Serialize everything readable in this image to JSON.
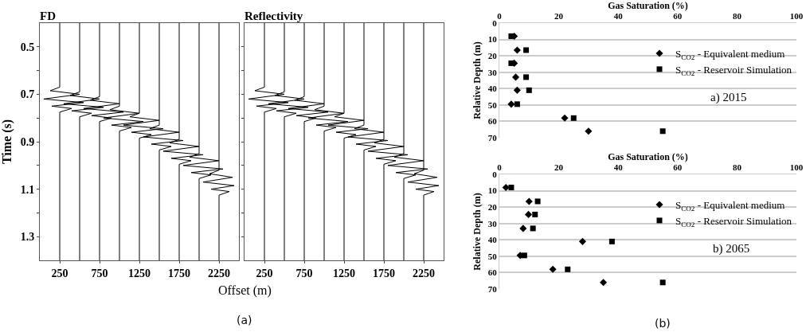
{
  "chart_data": [
    {
      "type": "line",
      "title": "FD",
      "ylabel": "Time (s)",
      "xlim": [
        0,
        2500
      ],
      "xticks": [
        250,
        750,
        1250,
        1750,
        2250
      ],
      "ylim": [
        1.4,
        0.4
      ],
      "yticks": [
        0.5,
        {
          "value": 0.6,
          "label": null
        },
        0.7,
        {
          "value": 0.8,
          "label": null
        },
        0.9,
        {
          "value": 1.0,
          "label": null
        },
        1.1,
        {
          "value": 1.2,
          "label": null
        },
        1.3
      ],
      "grid": false,
      "legend": false,
      "line_style": "solid",
      "series": [
        {
          "color": "#000000",
          "x": [
            250,
            250,
            130,
            500,
            50,
            550,
            150,
            400,
            250,
            250
          ],
          "values": [
            0.4,
            0.67,
            0.685,
            0.7,
            0.72,
            0.735,
            0.75,
            0.76,
            0.775,
            1.4
          ]
        },
        {
          "color": "#000000",
          "x": [
            500,
            500,
            380,
            750,
            300,
            800,
            400,
            650,
            500,
            500
          ],
          "values": [
            0.4,
            0.69,
            0.705,
            0.72,
            0.74,
            0.755,
            0.77,
            0.78,
            0.795,
            1.4
          ]
        },
        {
          "color": "#000000",
          "x": [
            750,
            750,
            630,
            1000,
            550,
            1050,
            650,
            900,
            750,
            750
          ],
          "values": [
            0.4,
            0.71,
            0.725,
            0.74,
            0.76,
            0.775,
            0.79,
            0.8,
            0.815,
            1.4
          ]
        },
        {
          "color": "#000000",
          "x": [
            1000,
            1000,
            880,
            1250,
            800,
            1300,
            900,
            1150,
            1000,
            1000
          ],
          "values": [
            0.4,
            0.75,
            0.765,
            0.78,
            0.8,
            0.815,
            0.83,
            0.84,
            0.855,
            1.4
          ]
        },
        {
          "color": "#000000",
          "x": [
            1250,
            1250,
            1130,
            1500,
            1050,
            1550,
            1150,
            1400,
            1250,
            1250
          ],
          "values": [
            0.4,
            0.78,
            0.795,
            0.81,
            0.83,
            0.845,
            0.86,
            0.87,
            0.885,
            1.4
          ]
        },
        {
          "color": "#000000",
          "x": [
            1500,
            1500,
            1380,
            1750,
            1300,
            1800,
            1400,
            1650,
            1500,
            1500
          ],
          "values": [
            0.4,
            0.83,
            0.845,
            0.86,
            0.88,
            0.895,
            0.91,
            0.92,
            0.935,
            1.4
          ]
        },
        {
          "color": "#000000",
          "x": [
            1750,
            1750,
            1630,
            2000,
            1550,
            2050,
            1650,
            1900,
            1750,
            1750
          ],
          "values": [
            0.4,
            0.89,
            0.905,
            0.92,
            0.94,
            0.955,
            0.97,
            0.98,
            0.995,
            1.4
          ]
        },
        {
          "color": "#000000",
          "x": [
            2000,
            2000,
            1880,
            2250,
            1800,
            2300,
            1900,
            2150,
            2000,
            2000
          ],
          "values": [
            0.4,
            0.95,
            0.965,
            0.98,
            1.0,
            1.015,
            1.03,
            1.04,
            1.055,
            1.4
          ]
        },
        {
          "color": "#000000",
          "x": [
            2250,
            2250,
            2130,
            2420,
            2050,
            2440,
            2150,
            2380,
            2250,
            2250
          ],
          "values": [
            0.4,
            1.02,
            1.035,
            1.05,
            1.07,
            1.085,
            1.1,
            1.11,
            1.125,
            1.4
          ]
        }
      ]
    },
    {
      "type": "line",
      "title": "Reflectivity",
      "xlabel": "Offset (m)",
      "annotations": [
        "(a)"
      ],
      "tick_labels": "x",
      "xlim": [
        0,
        2500
      ],
      "xticks": [
        250,
        750,
        1250,
        1750,
        2250
      ],
      "ylim": [
        1.4,
        0.4
      ],
      "yticks": [
        0.5,
        0.6,
        0.7,
        0.8,
        0.9,
        1.0,
        1.1,
        1.2,
        1.3
      ],
      "grid": false,
      "legend": false,
      "line_style": "solid",
      "series": [
        {
          "color": "#000000",
          "x": [
            250,
            250,
            130,
            500,
            50,
            550,
            150,
            400,
            250,
            250
          ],
          "values": [
            0.4,
            0.67,
            0.685,
            0.7,
            0.72,
            0.735,
            0.75,
            0.76,
            0.775,
            1.4
          ]
        },
        {
          "color": "#000000",
          "x": [
            500,
            500,
            380,
            750,
            300,
            800,
            400,
            650,
            500,
            500
          ],
          "values": [
            0.4,
            0.69,
            0.705,
            0.72,
            0.74,
            0.755,
            0.77,
            0.78,
            0.795,
            1.4
          ]
        },
        {
          "color": "#000000",
          "x": [
            750,
            750,
            630,
            1000,
            550,
            1050,
            650,
            900,
            750,
            750
          ],
          "values": [
            0.4,
            0.71,
            0.725,
            0.74,
            0.76,
            0.775,
            0.79,
            0.8,
            0.815,
            1.4
          ]
        },
        {
          "color": "#000000",
          "x": [
            1000,
            1000,
            880,
            1250,
            800,
            1300,
            900,
            1150,
            1000,
            1000
          ],
          "values": [
            0.4,
            0.75,
            0.765,
            0.78,
            0.8,
            0.815,
            0.83,
            0.84,
            0.855,
            1.4
          ]
        },
        {
          "color": "#000000",
          "x": [
            1250,
            1250,
            1130,
            1500,
            1050,
            1550,
            1150,
            1400,
            1250,
            1250
          ],
          "values": [
            0.4,
            0.78,
            0.795,
            0.81,
            0.83,
            0.845,
            0.86,
            0.87,
            0.885,
            1.4
          ]
        },
        {
          "color": "#000000",
          "x": [
            1500,
            1500,
            1380,
            1750,
            1300,
            1800,
            1400,
            1650,
            1500,
            1500
          ],
          "values": [
            0.4,
            0.83,
            0.845,
            0.86,
            0.88,
            0.895,
            0.91,
            0.92,
            0.935,
            1.4
          ]
        },
        {
          "color": "#000000",
          "x": [
            1750,
            1750,
            1630,
            2000,
            1550,
            2050,
            1650,
            1900,
            1750,
            1750
          ],
          "values": [
            0.4,
            0.89,
            0.905,
            0.92,
            0.94,
            0.955,
            0.97,
            0.98,
            0.995,
            1.4
          ]
        },
        {
          "color": "#000000",
          "x": [
            2000,
            2000,
            1880,
            2250,
            1800,
            2300,
            1900,
            2150,
            2000,
            2000
          ],
          "values": [
            0.4,
            0.95,
            0.965,
            0.98,
            1.0,
            1.015,
            1.03,
            1.04,
            1.055,
            1.4
          ]
        },
        {
          "color": "#000000",
          "x": [
            2250,
            2250,
            2130,
            2420,
            2050,
            2440,
            2150,
            2380,
            2250,
            2250
          ],
          "values": [
            0.4,
            1.02,
            1.035,
            1.05,
            1.07,
            1.085,
            1.1,
            1.11,
            1.125,
            1.4
          ]
        }
      ]
    },
    {
      "type": "scatter",
      "xlabel": "Gas Saturation (%)",
      "ylabel": "Relative Depth (m)",
      "annotations": [
        "a) 2015"
      ],
      "xlim": [
        0,
        100
      ],
      "xticks": [
        0,
        20,
        40,
        60,
        80,
        100
      ],
      "ylim": [
        70,
        0
      ],
      "yticks": [
        0,
        10,
        20,
        30,
        40,
        50,
        60,
        70
      ],
      "grid": "y",
      "legend": "top right",
      "series": [
        {
          "name": "S$_{CO2}$ - Equivalent medium",
          "color": "#000000",
          "marker": "diamond",
          "x": [
            5,
            6,
            5,
            5.5,
            6,
            4,
            22,
            30
          ],
          "values": [
            8,
            16.5,
            24.5,
            33,
            41,
            49.5,
            58,
            66
          ]
        },
        {
          "name": "S$_{CO2}$ - Reservoir Simulation",
          "color": "#000000",
          "marker": "square",
          "x": [
            4,
            9,
            4,
            9,
            10,
            6,
            25,
            55
          ],
          "values": [
            8,
            16.5,
            24.5,
            33,
            41,
            49.5,
            58,
            66
          ]
        }
      ]
    },
    {
      "type": "scatter",
      "xlabel": "Gas Saturation (%)",
      "ylabel": "Relative Depth (m)",
      "annotations": [
        "b) 2065",
        "(b)"
      ],
      "xlim": [
        0,
        100
      ],
      "xticks": [
        0,
        20,
        40,
        60,
        80,
        100
      ],
      "ylim": [
        70,
        0
      ],
      "yticks": [
        0,
        10,
        20,
        30,
        40,
        50,
        60,
        70
      ],
      "grid": "y",
      "legend": "top right",
      "series": [
        {
          "name": "S$_{CO2}$ - Equivalent medium",
          "color": "#000000",
          "marker": "diamond",
          "x": [
            2.2,
            10,
            9.8,
            8,
            28,
            7,
            18,
            35
          ],
          "values": [
            8,
            16.5,
            24.5,
            33,
            41,
            49.5,
            58,
            66
          ]
        },
        {
          "name": "S$_{CO2}$ - Reservoir Simulation",
          "color": "#000000",
          "marker": "square",
          "x": [
            4,
            12.9,
            12,
            11.3,
            37.9,
            8.4,
            23,
            55
          ],
          "values": [
            8,
            16.5,
            24.5,
            33,
            41,
            49.5,
            58,
            66
          ]
        }
      ]
    }
  ]
}
